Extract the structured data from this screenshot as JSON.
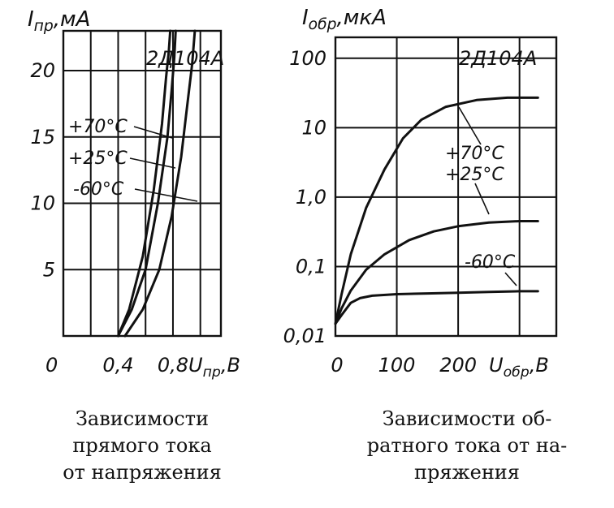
{
  "chart_data": [
    {
      "type": "line",
      "device": "2Д104А",
      "ylabel_main": "I",
      "ylabel_sub": "пр",
      "ylabel_unit": ",мА",
      "xlabel_main": "U",
      "xlabel_sub": "пр",
      "xlabel_unit": ",В",
      "origin_label": "0",
      "xlim": [
        0,
        1.15
      ],
      "ylim": [
        0,
        23
      ],
      "x_tick_labels": [
        {
          "label": "0,4",
          "value": 0.4
        },
        {
          "label": "0,8",
          "value": 0.8
        }
      ],
      "y_tick_labels": [
        {
          "label": "5",
          "value": 5
        },
        {
          "label": "10",
          "value": 10
        },
        {
          "label": "15",
          "value": 15
        },
        {
          "label": "20",
          "value": 20
        }
      ],
      "series": [
        {
          "name": "+70°C",
          "x": [
            0.4,
            0.48,
            0.58,
            0.66,
            0.72,
            0.75,
            0.77,
            0.78
          ],
          "y": [
            0,
            2,
            6,
            11,
            16,
            19.5,
            21.5,
            23
          ]
        },
        {
          "name": "+25°C",
          "x": [
            0.4,
            0.5,
            0.6,
            0.69,
            0.76,
            0.79,
            0.81,
            0.82
          ],
          "y": [
            0,
            2,
            5,
            10,
            15,
            18.5,
            21,
            23
          ]
        },
        {
          "name": "-60°C",
          "x": [
            0.45,
            0.58,
            0.7,
            0.79,
            0.86,
            0.9,
            0.94,
            0.96
          ],
          "y": [
            0,
            2,
            5,
            9,
            13.5,
            17,
            20.5,
            23
          ]
        }
      ],
      "caption": [
        "Зависимости",
        "прямого тока",
        "от   напряжения"
      ]
    },
    {
      "type": "line",
      "device": "2Д104А",
      "yscale": "log",
      "ylabel_main": "I",
      "ylabel_sub": "обр",
      "ylabel_unit": ",мкА",
      "xlabel_main": "U",
      "xlabel_sub": "обр",
      "xlabel_unit": ",В",
      "origin_label": "0",
      "xlim": [
        0,
        360
      ],
      "ylim": [
        0.01,
        200
      ],
      "x_tick_labels": [
        {
          "label": "100",
          "value": 100
        },
        {
          "label": "200",
          "value": 200
        }
      ],
      "y_tick_labels": [
        {
          "label": "0,01",
          "value": 0.01
        },
        {
          "label": "0,1",
          "value": 0.1
        },
        {
          "label": "1,0",
          "value": 1
        },
        {
          "label": "10",
          "value": 10
        },
        {
          "label": "100",
          "value": 100
        }
      ],
      "series_labels": [
        "+70°C",
        "+25°C",
        "-60°C"
      ],
      "series": [
        {
          "name": "+70°C",
          "x": [
            0,
            10,
            25,
            50,
            80,
            110,
            140,
            180,
            230,
            280,
            330
          ],
          "y": [
            0.015,
            0.04,
            0.15,
            0.7,
            2.5,
            7,
            13,
            20,
            25,
            27,
            27
          ]
        },
        {
          "name": "+25°C",
          "x": [
            0,
            10,
            25,
            50,
            80,
            120,
            160,
            200,
            250,
            300,
            330
          ],
          "y": [
            0.015,
            0.025,
            0.045,
            0.09,
            0.15,
            0.24,
            0.32,
            0.38,
            0.43,
            0.45,
            0.45
          ]
        },
        {
          "name": "-60°C",
          "x": [
            0,
            10,
            25,
            40,
            60,
            100,
            150,
            200,
            250,
            300,
            330
          ],
          "y": [
            0.015,
            0.02,
            0.03,
            0.035,
            0.038,
            0.04,
            0.041,
            0.042,
            0.043,
            0.044,
            0.044
          ]
        }
      ],
      "caption": [
        "Зависимости      об-",
        "ратного тока от на-",
        "пряжения"
      ]
    }
  ]
}
